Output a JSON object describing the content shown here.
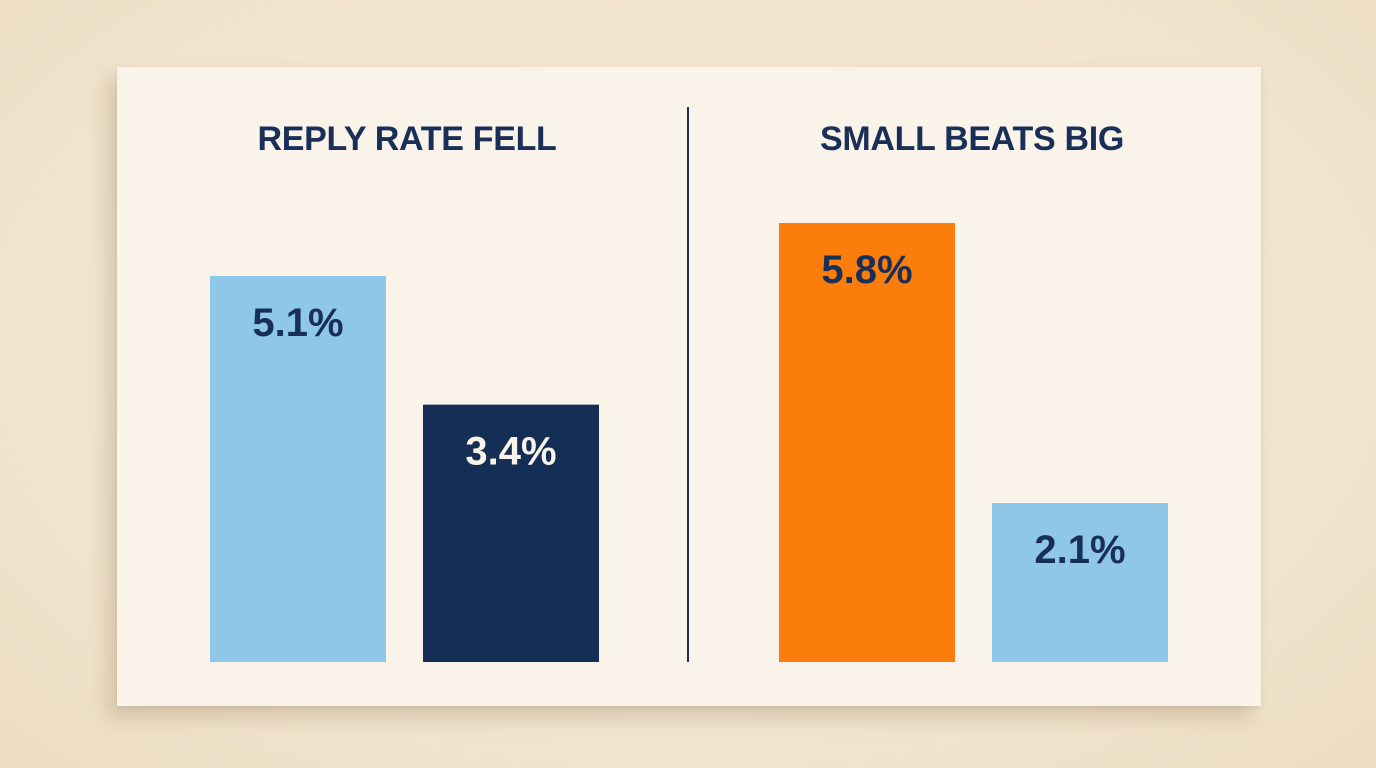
{
  "chart_data": [
    {
      "type": "bar",
      "title": "REPLY RATE FELL",
      "categories": [
        "",
        ""
      ],
      "values": [
        5.1,
        3.4
      ],
      "value_labels": [
        "5.1%",
        "3.4%"
      ],
      "bar_colors": [
        "#8ec7e8",
        "#152e56"
      ],
      "label_colors": [
        "#1a2f57",
        "#f9f3e9"
      ],
      "ylim": [
        0,
        6.5
      ],
      "grid": false
    },
    {
      "type": "bar",
      "title": "SMALL BEATS BIG",
      "categories": [
        "",
        ""
      ],
      "values": [
        5.8,
        2.1
      ],
      "value_labels": [
        "5.8%",
        "2.1%"
      ],
      "bar_colors": [
        "#fb7d0c",
        "#8ec7e8"
      ],
      "label_colors": [
        "#1a2f57",
        "#1a2f57"
      ],
      "ylim": [
        0,
        6.5
      ],
      "grid": false
    }
  ]
}
